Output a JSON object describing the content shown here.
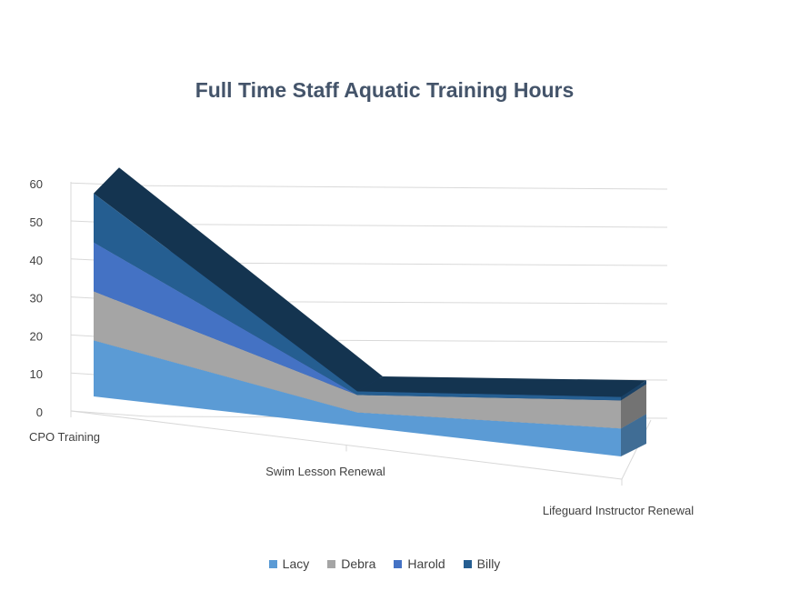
{
  "chart_data": {
    "type": "area",
    "title": "Full Time Staff Aquatic Training Hours",
    "categories": [
      "CPO Training",
      "Swim Lesson Renewal",
      "Lifeguard Instructor Renewal"
    ],
    "series": [
      {
        "name": "Lacy",
        "values": [
          16,
          4,
          8
        ],
        "color": "#5b9bd5"
      },
      {
        "name": "Debra",
        "values": [
          14,
          5,
          8
        ],
        "color": "#a5a5a5"
      },
      {
        "name": "Harold",
        "values": [
          14,
          0,
          0
        ],
        "color": "#4472c4"
      },
      {
        "name": "Billy",
        "values": [
          14,
          1,
          1
        ],
        "color": "#255e91"
      }
    ],
    "ylim": [
      0,
      60
    ],
    "yticks": [
      0,
      10,
      20,
      30,
      40,
      50,
      60
    ],
    "stacked": true,
    "view": "3d",
    "grid": true,
    "legend_position": "bottom"
  }
}
